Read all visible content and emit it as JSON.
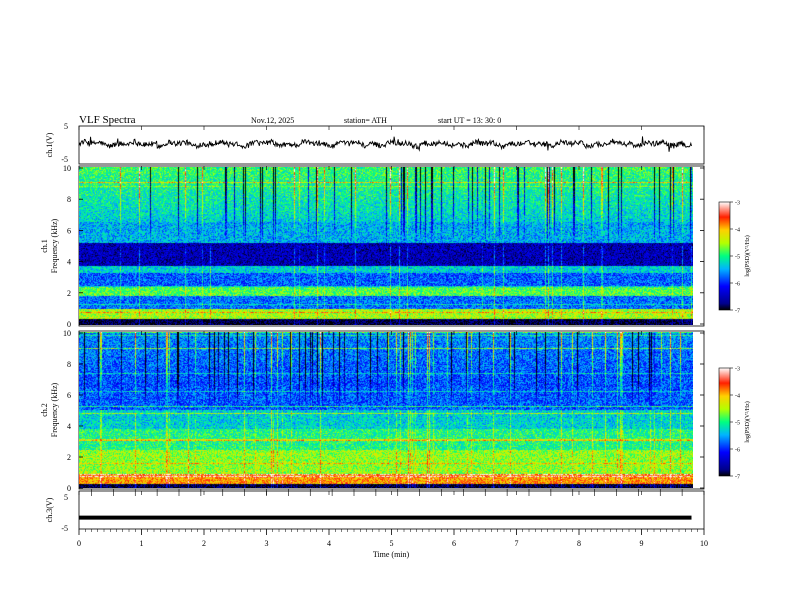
{
  "header": {
    "title": "VLF  Spectra",
    "date": "Nov.12, 2025",
    "station": "station= ATH",
    "start_time": "start  UT  =    13: 30: 0"
  },
  "chart_data": [
    {
      "type": "line",
      "panel": "ch1-waveform",
      "ylabel": "ch.1(V)",
      "yticks": [
        "5",
        "-5"
      ],
      "ylim": [
        -5,
        5
      ],
      "xlim": [
        0,
        10
      ],
      "note_level": 0.3
    },
    {
      "type": "heatmap",
      "panel": "ch1-spectrogram",
      "ylabel": "ch.1\nFrequency  (kHz)",
      "ylabel_line1": "ch.1",
      "ylabel_line2": "Frequency  (kHz)",
      "yticks": [
        "0",
        "2",
        "4",
        "6",
        "8",
        "10"
      ],
      "ylim": [
        0,
        10
      ],
      "xlim": [
        0,
        9.8
      ],
      "colorbar": {
        "label": "log(PSD)(V²/Hz)",
        "ticks": [
          "-3",
          "-4",
          "-5",
          "-6",
          "-7"
        ],
        "range": [
          -7,
          -3
        ]
      }
    },
    {
      "type": "heatmap",
      "panel": "ch2-spectrogram",
      "ylabel_line1": "ch.2",
      "ylabel_line2": "Frequency  (kHz)",
      "yticks": [
        "0",
        "2",
        "4",
        "6",
        "8",
        "10"
      ],
      "ylim": [
        0,
        10
      ],
      "xlim": [
        0,
        9.8
      ],
      "colorbar": {
        "label": "log(PSD)(V²/Hz)",
        "ticks": [
          "-3",
          "-4",
          "-5",
          "-6",
          "-7"
        ],
        "range": [
          -7,
          -3
        ]
      }
    },
    {
      "type": "line",
      "panel": "ch3-waveform",
      "ylabel": "ch.3(V)",
      "yticks": [
        "5",
        "-5"
      ],
      "ylim": [
        -5,
        5
      ],
      "xlim": [
        0,
        10
      ],
      "level": -2.0
    }
  ],
  "xaxis": {
    "label": "Time  (min)",
    "ticks": [
      "0",
      "1",
      "2",
      "3",
      "4",
      "5",
      "6",
      "7",
      "8",
      "9",
      "10"
    ],
    "range": [
      0,
      10
    ]
  },
  "colors": {
    "spectro_low": "#000080",
    "spectro_high": "#ff0000"
  }
}
